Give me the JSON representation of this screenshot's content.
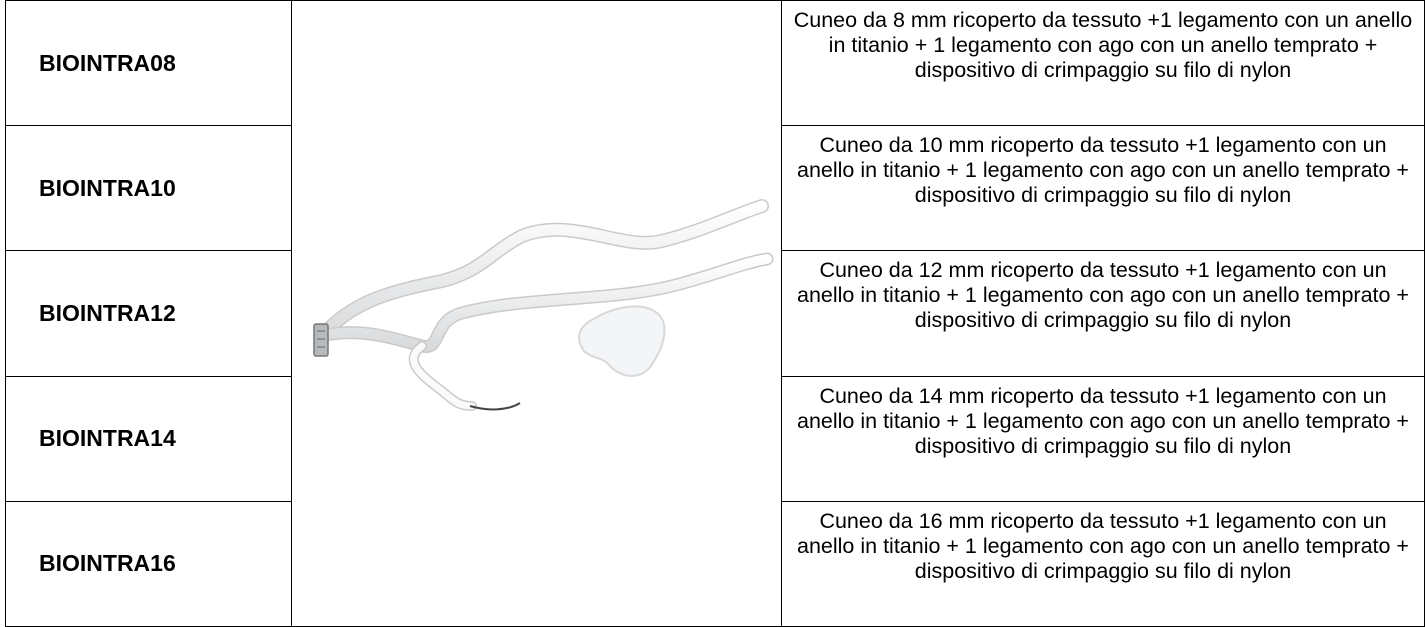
{
  "table": {
    "rows": [
      [
        "BIOINTRA08",
        "Cuneo da 8 mm ricoperto da tessuto +1 legamento con un anello in titanio + 1 legamento con ago con un anello temprato + dispositivo di crimpaggio su filo di nylon"
      ],
      [
        "BIOINTRA10",
        "Cuneo da 10 mm ricoperto da tessuto +1 legamento con un anello in titanio + 1 legamento con ago con un anello temprato + dispositivo di crimpaggio su filo di nylon"
      ],
      [
        "BIOINTRA12",
        "Cuneo da 12 mm ricoperto da tessuto +1 legamento con un anello in titanio + 1 legamento con ago con un anello temprato + dispositivo di crimpaggio su filo di nylon"
      ],
      [
        "BIOINTRA14",
        "Cuneo da 14 mm ricoperto da tessuto +1 legamento con un anello in titanio + 1 legamento con ago con un anello temprato + dispositivo di crimpaggio su filo di nylon"
      ],
      [
        "BIOINTRA16",
        "Cuneo da 16 mm ricoperto da tessuto +1 legamento con un anello in titanio + 1 legamento con ago con un anello temprato + dispositivo di crimpaggio su filo di nylon"
      ]
    ]
  }
}
